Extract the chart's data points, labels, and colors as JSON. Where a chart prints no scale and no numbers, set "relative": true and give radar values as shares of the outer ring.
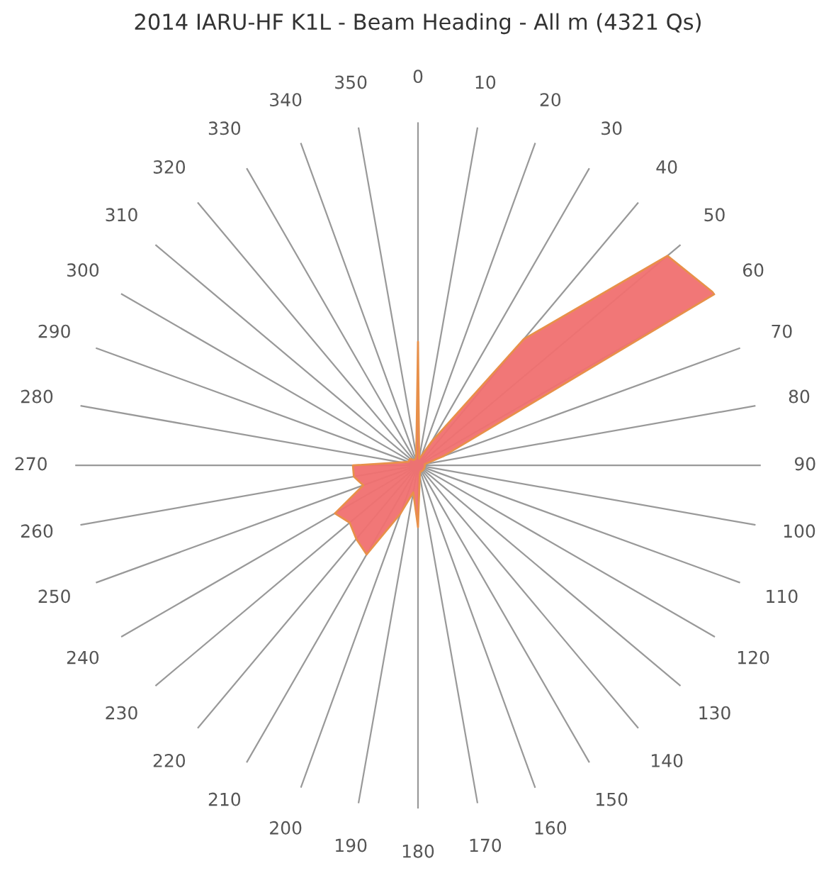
{
  "chart_data": {
    "type": "radar",
    "title": "2014 IARU-HF K1L - Beam Heading - All m (4321 Qs)",
    "relative": true,
    "grid": true,
    "categories": [
      "0",
      "10",
      "20",
      "30",
      "40",
      "50",
      "60",
      "70",
      "80",
      "90",
      "100",
      "110",
      "120",
      "130",
      "140",
      "150",
      "160",
      "170",
      "180",
      "190",
      "200",
      "210",
      "220",
      "230",
      "240",
      "250",
      "260",
      "270",
      "280",
      "290",
      "300",
      "310",
      "320",
      "330",
      "340",
      "350"
    ],
    "series": [
      {
        "color": "#f07070",
        "values": [
          0.36,
          0.02,
          0.03,
          0.08,
          0.48,
          0.95,
          1.0,
          0.08,
          0.02,
          0.02,
          0.02,
          0.02,
          0.02,
          0.02,
          0.02,
          0.02,
          0.02,
          0.03,
          0.18,
          0.08,
          0.15,
          0.3,
          0.28,
          0.26,
          0.28,
          0.17,
          0.19,
          0.19,
          0.05,
          0.03,
          0.03,
          0.03,
          0.02,
          0.02,
          0.02,
          0.03
        ]
      }
    ]
  }
}
